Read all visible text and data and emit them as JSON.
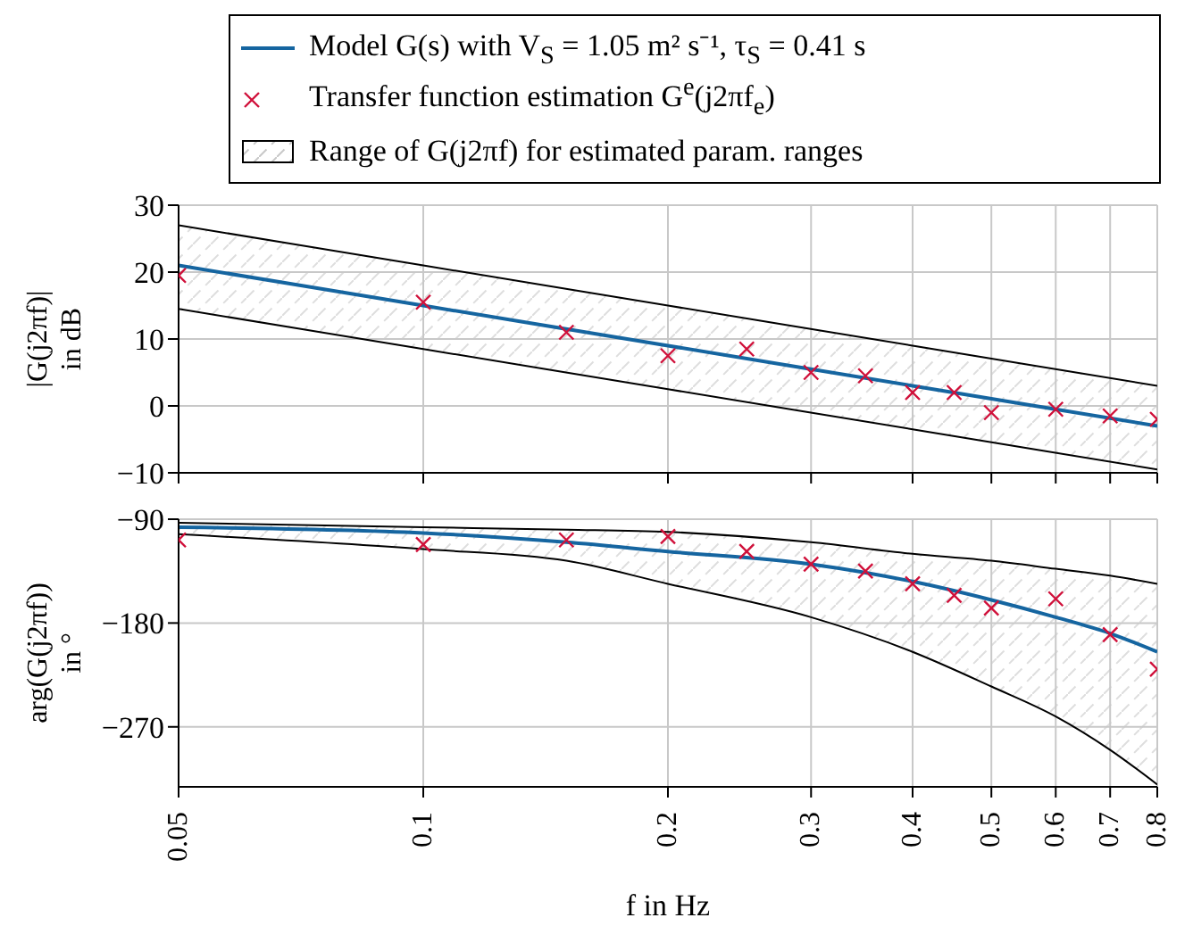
{
  "chart_data": [
    {
      "type": "line",
      "ylabel": "|G(j2πf)| in dB",
      "legend": "top",
      "grid": true,
      "log": "x",
      "tick_labels": "y",
      "annotations": [
        "Range of G(j2πf) for estimated param. ranges"
      ],
      "xlim": [
        0.05,
        0.8
      ],
      "xticks": [
        {
          "value": 0.05,
          "label": null
        },
        {
          "value": 0.1,
          "label": null
        },
        {
          "value": 0.2,
          "label": null
        },
        {
          "value": 0.3,
          "label": null
        },
        {
          "value": 0.4,
          "label": null
        },
        {
          "value": 0.5,
          "label": null
        },
        {
          "value": 0.6,
          "label": null
        },
        {
          "value": 0.7,
          "label": null
        },
        {
          "value": 0.8,
          "label": null
        }
      ],
      "ylim": [
        -10,
        30
      ],
      "yticks": [
        -10,
        0,
        10,
        20,
        30
      ],
      "series": [
        {
          "type": "line",
          "name": "Model G(s) with V$_{S}$ = 1.05 m² s⁻¹, τ$_{S}$ = 0.41 s",
          "color": "#1565a0",
          "x": [
            0.05,
            0.1,
            0.2,
            0.4,
            0.8
          ],
          "values": [
            21,
            15,
            9,
            3,
            -3
          ],
          "lower": [
            14.5,
            8.5,
            2.5,
            -3.5,
            -9.5
          ],
          "upper": [
            27,
            21,
            15,
            9,
            3
          ]
        },
        {
          "type": "line",
          "color": "#000000",
          "x": [
            0.05,
            0.1,
            0.2,
            0.4,
            0.8
          ],
          "values": [
            14.5,
            8.5,
            2.5,
            -3.5,
            -9.5
          ]
        },
        {
          "type": "line",
          "color": "#000000",
          "x": [
            0.05,
            0.1,
            0.2,
            0.4,
            0.8
          ],
          "values": [
            27,
            21,
            15,
            9,
            3
          ]
        },
        {
          "type": "scatter",
          "name": "Transfer function estimation G$^{e}$(j2πf$_{e}$)",
          "color": "#d0103a",
          "marker": "cross",
          "x": [
            0.05,
            0.1,
            0.15,
            0.2,
            0.25,
            0.3,
            0.35,
            0.4,
            0.45,
            0.5,
            0.6,
            0.7,
            0.8
          ],
          "values": [
            19.5,
            15.5,
            11,
            7.5,
            8.5,
            5,
            4.5,
            2,
            2,
            -1,
            -0.5,
            -1.5,
            -2
          ]
        }
      ]
    },
    {
      "type": "line",
      "ylabel": "arg(G(j2πf)) in °",
      "xlabel": "f in Hz",
      "grid": true,
      "log": "x",
      "xlim": [
        0.05,
        0.8
      ],
      "xticks": [
        0.05,
        0.1,
        0.2,
        0.3,
        0.4,
        0.5,
        0.6,
        0.7,
        0.8
      ],
      "ylim": [
        -322,
        -90
      ],
      "yticks": [
        -90,
        -180,
        -270
      ],
      "series": [
        {
          "type": "line",
          "color": "#1565a0",
          "x": [
            0.05,
            0.1,
            0.15,
            0.2,
            0.3,
            0.4,
            0.5,
            0.6,
            0.7,
            0.8
          ],
          "values": [
            -97,
            -102,
            -110,
            -118,
            -129,
            -144,
            -160,
            -175,
            -189,
            -205
          ],
          "lower": [
            -103,
            -116,
            -126,
            -146,
            -175,
            -205,
            -235,
            -261,
            -290,
            -320
          ],
          "upper": [
            -93,
            -97,
            -99,
            -101,
            -110,
            -120,
            -126,
            -133,
            -139,
            -146
          ]
        },
        {
          "type": "line",
          "color": "#000000",
          "x": [
            0.05,
            0.1,
            0.15,
            0.2,
            0.3,
            0.4,
            0.5,
            0.6,
            0.7,
            0.8
          ],
          "values": [
            -103,
            -116,
            -126,
            -146,
            -175,
            -205,
            -235,
            -261,
            -290,
            -320
          ]
        },
        {
          "type": "line",
          "color": "#000000",
          "x": [
            0.05,
            0.1,
            0.15,
            0.2,
            0.3,
            0.4,
            0.5,
            0.6,
            0.7,
            0.8
          ],
          "values": [
            -93,
            -97,
            -99,
            -101,
            -110,
            -120,
            -126,
            -133,
            -139,
            -146
          ]
        },
        {
          "type": "scatter",
          "color": "#d0103a",
          "marker": "cross",
          "x": [
            0.05,
            0.1,
            0.15,
            0.2,
            0.25,
            0.3,
            0.35,
            0.4,
            0.45,
            0.5,
            0.6,
            0.7,
            0.8
          ],
          "values": [
            -108,
            -112,
            -108,
            -105,
            -118,
            -129,
            -135,
            -146,
            -156,
            -167,
            -159,
            -190,
            -220
          ]
        }
      ]
    }
  ]
}
